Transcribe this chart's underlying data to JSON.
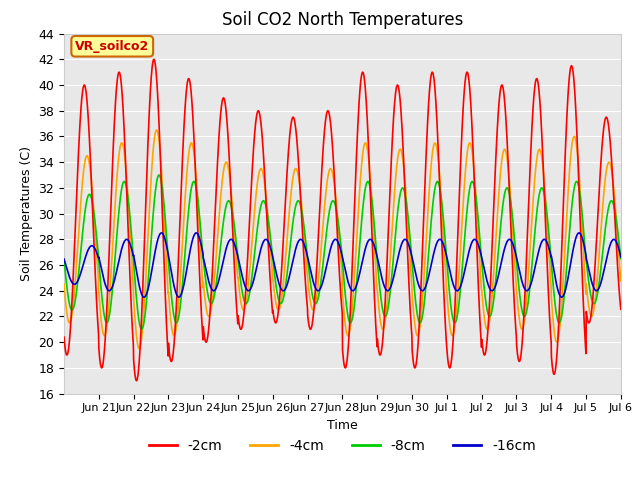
{
  "title": "Soil CO2 North Temperatures",
  "xlabel": "Time",
  "ylabel": "Soil Temperatures (C)",
  "ylim": [
    16,
    44
  ],
  "yticks": [
    16,
    18,
    20,
    22,
    24,
    26,
    28,
    30,
    32,
    34,
    36,
    38,
    40,
    42,
    44
  ],
  "legend_labels": [
    "-2cm",
    "-4cm",
    "-8cm",
    "-16cm"
  ],
  "legend_colors": [
    "#ff0000",
    "#ffa500",
    "#00cc00",
    "#0000cc"
  ],
  "annotation_text": "VR_soilco2",
  "annotation_color": "#cc0000",
  "annotation_bg": "#ffff99",
  "annotation_border": "#cc6600",
  "background_color": "#e8e8e8",
  "num_days": 16,
  "xtick_labels": [
    "Jun 21",
    "Jun 22",
    "Jun 23",
    "Jun 24",
    "Jun 25",
    "Jun 26",
    "Jun 27",
    "Jun 28",
    "Jun 29",
    "Jun 30",
    "Jul 1",
    "Jul 2",
    "Jul 3",
    "Jul 4",
    "Jul 5",
    "Jul 6"
  ],
  "amp_2cm_per_day": [
    10.5,
    11.5,
    12.5,
    11.0,
    9.5,
    8.5,
    8.0,
    8.5,
    11.5,
    10.5,
    11.5,
    11.5,
    10.5,
    11.0,
    12.0,
    8.0
  ],
  "amp_4cm_per_day": [
    6.5,
    7.5,
    8.5,
    7.5,
    6.0,
    5.5,
    5.5,
    5.5,
    7.5,
    7.0,
    7.5,
    7.5,
    7.0,
    7.0,
    8.0,
    6.0
  ],
  "amp_8cm_per_day": [
    4.5,
    5.5,
    6.0,
    5.5,
    4.0,
    4.0,
    4.0,
    4.0,
    5.5,
    5.0,
    5.5,
    5.5,
    5.0,
    5.0,
    5.5,
    4.0
  ],
  "amp_16cm_per_day": [
    1.5,
    2.0,
    2.5,
    2.5,
    2.0,
    2.0,
    2.0,
    2.0,
    2.0,
    2.0,
    2.0,
    2.0,
    2.0,
    2.0,
    2.5,
    2.0
  ],
  "base_2cm": 29.5,
  "base_4cm": 28.0,
  "base_8cm": 27.0,
  "base_16cm": 26.0,
  "phase_2cm": 0.333,
  "phase_4cm": 0.41,
  "phase_8cm": 0.48,
  "phase_16cm": 0.55,
  "figsize": [
    6.4,
    4.8
  ],
  "dpi": 100
}
